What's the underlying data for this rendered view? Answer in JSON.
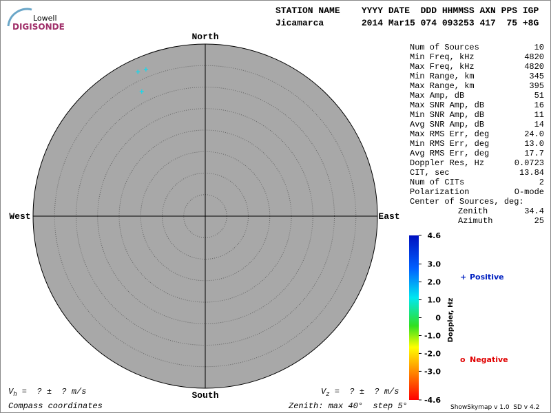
{
  "logo": {
    "top": "Lowell",
    "bottom": "DIGISONDE"
  },
  "header": {
    "line1": "STATION NAME    YYYY DATE  DDD HHMMSS AXN PPS IGP",
    "line2": "Jicamarca       2014 Mar15 074 093253 417  75 +8G"
  },
  "skymap": {
    "north": "North",
    "south": "South",
    "west": "West",
    "east": "East",
    "max_zenith": 40,
    "source_color": "#22d3e6",
    "sources": [
      {
        "zenith": 37,
        "azimuth": 335
      },
      {
        "zenith": 36.8,
        "azimuth": 338
      },
      {
        "zenith": 32.5,
        "azimuth": 333
      }
    ]
  },
  "stats": [
    {
      "label": "Num of Sources",
      "value": "10"
    },
    {
      "label": "Min Freq, kHz",
      "value": "4820"
    },
    {
      "label": "Max Freq, kHz",
      "value": "4820"
    },
    {
      "label": "Min Range, km",
      "value": "345"
    },
    {
      "label": "Max Range, km",
      "value": "395"
    },
    {
      "label": "Max Amp, dB",
      "value": "51"
    },
    {
      "label": "Max SNR Amp, dB",
      "value": "16"
    },
    {
      "label": "Min SNR Amp, dB",
      "value": "11"
    },
    {
      "label": "Avg SNR Amp, dB",
      "value": "14"
    },
    {
      "label": "Max RMS Err, deg",
      "value": "24.0"
    },
    {
      "label": "Min RMS Err, deg",
      "value": "13.0"
    },
    {
      "label": "Avg RMS Err, deg",
      "value": "17.7"
    },
    {
      "label": "Doppler Res, Hz",
      "value": "0.0723"
    },
    {
      "label": "CIT, sec",
      "value": "13.84"
    },
    {
      "label": "Num of CITs",
      "value": "2"
    },
    {
      "label": "Polarization",
      "value": "O-mode"
    }
  ],
  "center": {
    "label": "Center of Sources, deg:",
    "items": [
      {
        "label": "Zenith",
        "value": "34.4"
      },
      {
        "label": "Azimuth",
        "value": "25"
      }
    ]
  },
  "colorbar": {
    "title": "Doppler, Hz",
    "ticks": [
      4.6,
      {
        "value": 3,
        "label": "3.0"
      },
      {
        "value": 2,
        "label": "2.0"
      },
      {
        "value": 1,
        "label": "1.0"
      },
      0,
      {
        "value": -1,
        "label": "-1.0"
      },
      {
        "value": -2,
        "label": "-2.0"
      },
      {
        "value": -3,
        "label": "-3.0"
      },
      -4.6
    ]
  },
  "legend": {
    "positive": {
      "symbol": "+",
      "label": "Positive"
    },
    "negative": {
      "symbol": "o",
      "label": "Negative"
    }
  },
  "footer": {
    "vh": {
      "symbol": "V",
      "subscript": "h",
      "text": " =  ? ±  ? m/s"
    },
    "vz": {
      "symbol": "V",
      "subscript": "z",
      "text": " =  ? ±  ? m/s"
    },
    "coordinates": "Compass coordinates",
    "zenith_info": "Zenith: max 40°  step 5°",
    "version": "ShowSkymap v 1.0  SD v 4.2"
  }
}
